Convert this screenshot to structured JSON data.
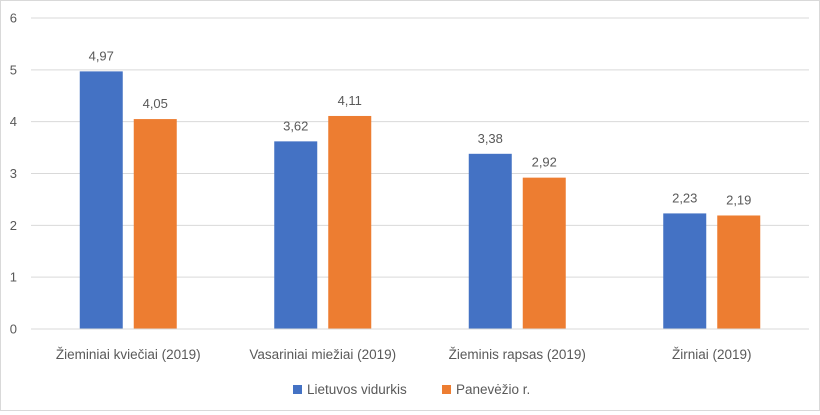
{
  "chart_data": {
    "type": "bar",
    "title": "",
    "xlabel": "",
    "ylabel": "",
    "categories": [
      "Žieminiai kviečiai (2019)",
      "Vasariniai miežiai (2019)",
      "Žieminis rapsas (2019)",
      "Žirniai (2019)"
    ],
    "series": [
      {
        "name": "Lietuvos vidurkis",
        "color": "#4472c4",
        "values": [
          4.97,
          3.62,
          3.38,
          2.23
        ],
        "labels": [
          "4,97",
          "3,62",
          "3,38",
          "2,23"
        ]
      },
      {
        "name": "Panevėžio r.",
        "color": "#ed7d31",
        "values": [
          4.05,
          4.11,
          2.92,
          2.19
        ],
        "labels": [
          "4,05",
          "4,11",
          "2,92",
          "2,19"
        ]
      }
    ],
    "ylim": [
      0,
      6
    ],
    "yticks": [
      "0",
      "1",
      "2",
      "3",
      "4",
      "5",
      "6"
    ],
    "grid": true,
    "legend": "bottom-center"
  }
}
